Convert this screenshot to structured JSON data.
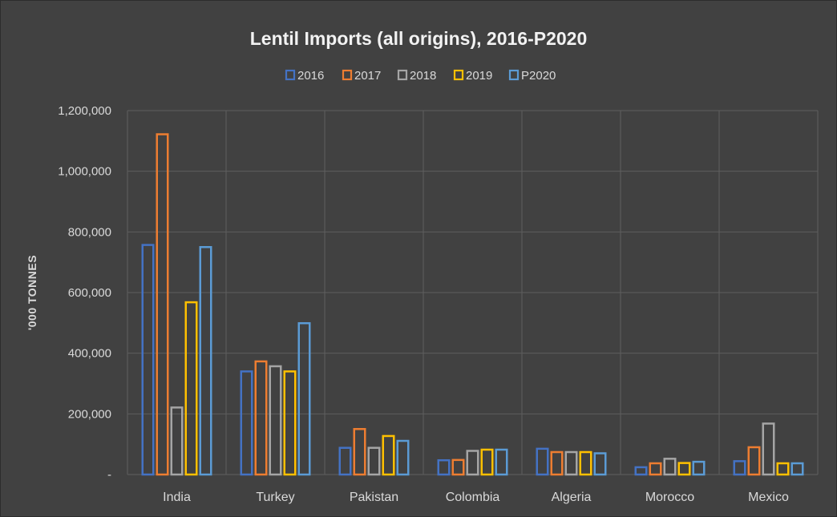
{
  "chart_data": {
    "type": "bar",
    "title": "Lentil Imports (all origins), 2016-P2020",
    "ylabel": "'000 TONNES",
    "xlabel": "",
    "ylim": [
      0,
      1200000
    ],
    "yticks": [
      0,
      200000,
      400000,
      600000,
      800000,
      1000000,
      1200000
    ],
    "ytick_labels": [
      "-",
      "200,000",
      "400,000",
      "600,000",
      "800,000",
      "1,000,000",
      "1,200,000"
    ],
    "categories": [
      "India",
      "Turkey",
      "Pakistan",
      "Colombia",
      "Algeria",
      "Morocco",
      "Mexico"
    ],
    "series": [
      {
        "name": "2016",
        "color": "#4472c4",
        "values": [
          757000,
          340000,
          88000,
          47000,
          85000,
          24000,
          44000
        ]
      },
      {
        "name": "2017",
        "color": "#ed7d31",
        "values": [
          1122000,
          373000,
          150000,
          48000,
          74000,
          37000,
          90000
        ]
      },
      {
        "name": "2018",
        "color": "#a5a5a5",
        "values": [
          221000,
          357000,
          88000,
          78000,
          74000,
          52000,
          168000
        ]
      },
      {
        "name": "2019",
        "color": "#ffc000",
        "values": [
          568000,
          340000,
          127000,
          82000,
          74000,
          38000,
          37000
        ]
      },
      {
        "name": "P2020",
        "color": "#5b9bd5",
        "values": [
          750000,
          499000,
          111000,
          82000,
          70000,
          42000,
          37000
        ]
      }
    ],
    "legend_position": "top",
    "grid": true,
    "bar_style": "outlined"
  }
}
